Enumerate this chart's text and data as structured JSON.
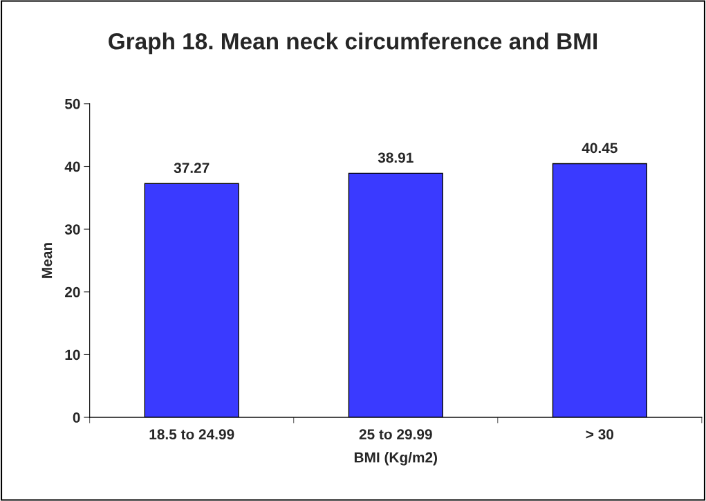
{
  "chart_data": {
    "type": "bar",
    "title": "Graph 18. Mean neck circumference and BMI",
    "xlabel": "BMI (Kg/m2)",
    "ylabel": "Mean",
    "categories": [
      "18.5 to 24.99",
      "25 to 29.99",
      "> 30"
    ],
    "values": [
      37.27,
      38.91,
      40.45
    ],
    "color": "#3a3aff",
    "ylim": [
      0,
      50
    ],
    "yticks": [
      0,
      10,
      20,
      30,
      40,
      50
    ],
    "grid": false,
    "data_labels": true
  }
}
